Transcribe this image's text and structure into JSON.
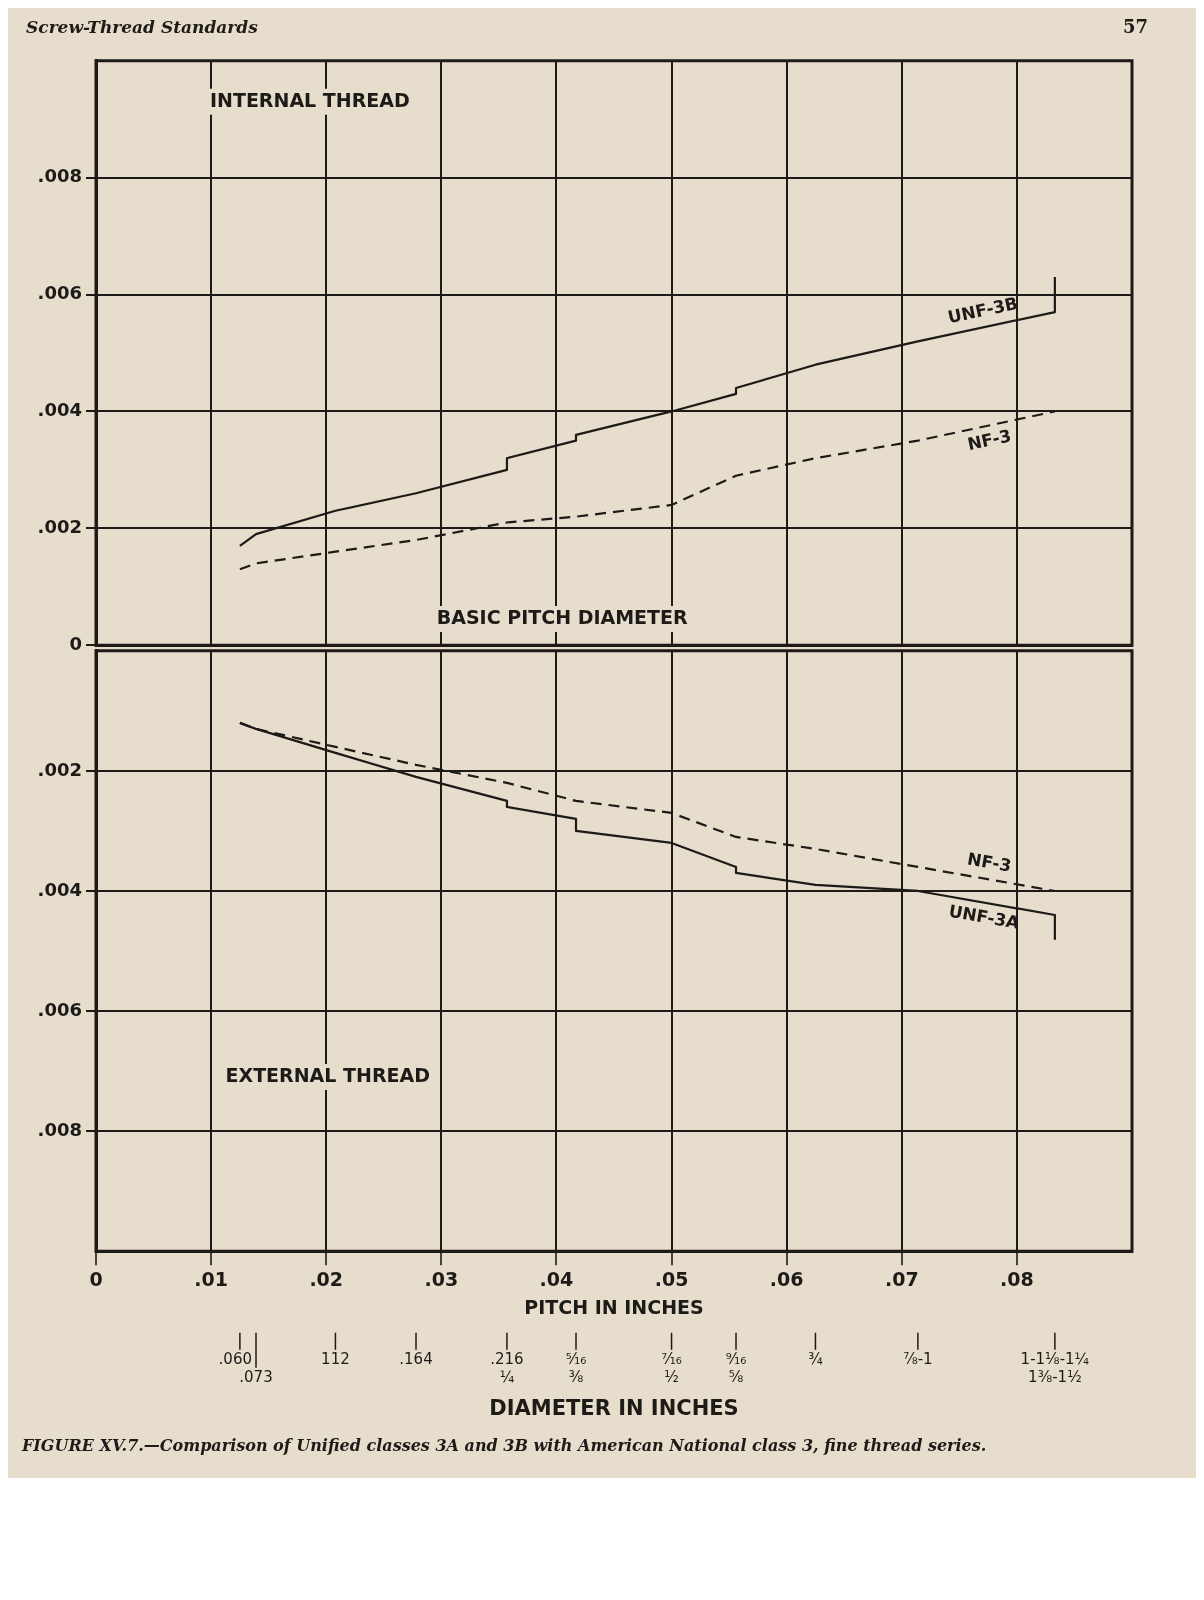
{
  "chart_data": [
    {
      "type": "line",
      "annotations": [
        "INTERNAL THREAD",
        "BASIC PITCH DIAMETER",
        "Screw-Thread Standards",
        "57"
      ],
      "xlim": [
        0,
        0.09
      ],
      "xticks": [
        {
          "value": 0,
          "label": null
        },
        {
          "value": 0.01,
          "label": null
        },
        {
          "value": 0.02,
          "label": null
        },
        {
          "value": 0.03,
          "label": null
        },
        {
          "value": 0.04,
          "label": null
        },
        {
          "value": 0.05,
          "label": null
        },
        {
          "value": 0.06,
          "label": null
        },
        {
          "value": 0.07,
          "label": null
        },
        {
          "value": 0.08,
          "label": null
        }
      ],
      "tick_labels": "y",
      "ylim": [
        0,
        0.01
      ],
      "yticks": [
        0,
        {
          "value": 0.002,
          "label": ".002"
        },
        {
          "value": 0.004,
          "label": ".004"
        },
        {
          "value": 0.006,
          "label": ".006"
        },
        {
          "value": 0.008,
          "label": ".008"
        }
      ],
      "grid": true,
      "series": [
        {
          "name": "UNF-3B",
          "color": "#1d1b18",
          "line_style": "solid",
          "x": [
            0.0125,
            0.0139,
            0.0208,
            0.0278,
            0.0357,
            0.0357,
            0.0417,
            0.0417,
            0.05,
            0.0556,
            0.0556,
            0.0625,
            0.0714,
            0.0833,
            0.0833
          ],
          "values": [
            0.0017,
            0.0019,
            0.0023,
            0.0026,
            0.003,
            0.0032,
            0.0035,
            0.0036,
            0.004,
            0.0043,
            0.0044,
            0.0048,
            0.0052,
            0.0057,
            0.0063
          ]
        },
        {
          "name": "NF-3",
          "color": "#1d1b18",
          "line_style": "dashed",
          "x": [
            0.0125,
            0.0139,
            0.0208,
            0.0278,
            0.0357,
            0.0417,
            0.05,
            0.0556,
            0.0625,
            0.0714,
            0.0833
          ],
          "values": [
            0.0013,
            0.0014,
            0.0016,
            0.0018,
            0.0021,
            0.0022,
            0.0024,
            0.0029,
            0.0032,
            0.0035,
            0.004
          ]
        }
      ]
    },
    {
      "type": "line",
      "title": "FIGURE XV.7.—Comparison of Unified classes 3A and 3B with American National class 3, fine thread series.",
      "xlabel": "PITCH IN INCHES",
      "annotations": [
        "EXTERNAL THREAD",
        {
          "text": ".060",
          "x": 0.0125
        },
        {
          "text": ".073",
          "x": 0.0139
        },
        {
          "text": "112",
          "x": 0.0208
        },
        {
          "text": ".164",
          "x": 0.0278
        },
        {
          "text": ".216\n¼",
          "x": 0.0357
        },
        {
          "text": "⁵⁄₁₆\n⅜",
          "x": 0.0417
        },
        {
          "text": "⁷⁄₁₆\n½",
          "x": 0.05
        },
        {
          "text": "⁹⁄₁₆\n⅝",
          "x": 0.0556
        },
        {
          "text": "¾",
          "x": 0.0625
        },
        {
          "text": "⅞-1",
          "x": 0.0714
        },
        {
          "text": "1-1⅛-1¼\n1⅜-1½",
          "x": 0.0833
        },
        "DIAMETER IN INCHES"
      ],
      "xlim": [
        0,
        0.09
      ],
      "xticks": [
        0,
        {
          "value": 0.01,
          "label": ".01"
        },
        {
          "value": 0.02,
          "label": ".02"
        },
        {
          "value": 0.03,
          "label": ".03"
        },
        {
          "value": 0.04,
          "label": ".04"
        },
        {
          "value": 0.05,
          "label": ".05"
        },
        {
          "value": 0.06,
          "label": ".06"
        },
        {
          "value": 0.07,
          "label": ".07"
        },
        {
          "value": 0.08,
          "label": ".08"
        }
      ],
      "ylim": [
        0.01,
        0
      ],
      "yticks": [
        {
          "value": 0.002,
          "label": ".002"
        },
        {
          "value": 0.004,
          "label": ".004"
        },
        {
          "value": 0.006,
          "label": ".006"
        },
        {
          "value": 0.008,
          "label": ".008"
        }
      ],
      "grid": true,
      "series": [
        {
          "name": "NF-3",
          "color": "#1d1b18",
          "line_style": "dashed",
          "x": [
            0.0125,
            0.0139,
            0.0208,
            0.0278,
            0.0357,
            0.0417,
            0.05,
            0.0556,
            0.0625,
            0.0714,
            0.0833
          ],
          "values": [
            0.0012,
            0.0013,
            0.0016,
            0.0019,
            0.0022,
            0.0025,
            0.0027,
            0.0031,
            0.0033,
            0.0036,
            0.004
          ]
        },
        {
          "name": "UNF-3A",
          "color": "#1d1b18",
          "line_style": "solid",
          "x": [
            0.0125,
            0.0139,
            0.0208,
            0.0278,
            0.0357,
            0.0357,
            0.0417,
            0.0417,
            0.05,
            0.0556,
            0.0556,
            0.0625,
            0.0714,
            0.0833,
            0.0833
          ],
          "values": [
            0.0012,
            0.0013,
            0.0017,
            0.0021,
            0.0025,
            0.0026,
            0.0028,
            0.003,
            0.0032,
            0.0036,
            0.0037,
            0.0039,
            0.004,
            0.0044,
            0.0048
          ]
        }
      ]
    }
  ]
}
